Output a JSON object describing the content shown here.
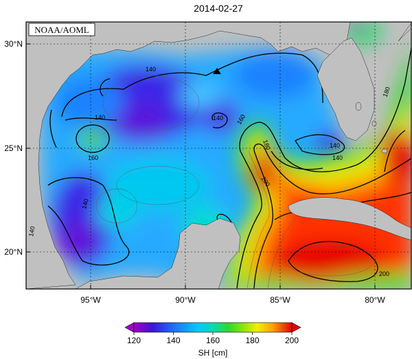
{
  "title": "2014-02-27",
  "credit": "NOAA/AOML",
  "lat_labels": [
    "30°N",
    "25°N",
    "20°N"
  ],
  "lon_labels": [
    "95°W",
    "90°W",
    "85°W",
    "80°W"
  ],
  "colorbar": {
    "ticks": [
      "120",
      "140",
      "160",
      "180",
      "200"
    ],
    "label": "SH [cm]",
    "colors": [
      "#a000c8",
      "#3c14dc",
      "#1e6eff",
      "#00c8ff",
      "#00dcb4",
      "#28dc28",
      "#96e600",
      "#f0f000",
      "#ffa000",
      "#ff3200",
      "#e60000"
    ]
  },
  "contour_labels": [
    "140",
    "140",
    "140",
    "160",
    "140",
    "160",
    "180",
    "200",
    "180",
    "140",
    "140",
    "200",
    "140"
  ],
  "colors": {
    "land": "#c0c0c0",
    "frame": "#000000"
  }
}
